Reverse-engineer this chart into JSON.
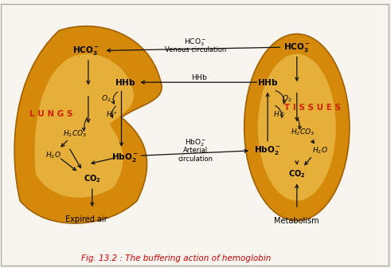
{
  "title": "Fig. 13.2 : The buffering action of hemoglobin",
  "title_color": "#cc0000",
  "bg_color": "#f8f4ee",
  "lung_label": "L U N G S",
  "tissue_label": "T I S S U E S",
  "label_color": "#cc2200",
  "expired_air": "Expired air",
  "metabolism": "Metabolism",
  "venous_text": "Venous circulation",
  "arterial_text": "Arterial\ncirculation",
  "arrow_color": "#111111",
  "ellipse_fill_outer": "#d4890a",
  "ellipse_fill_inner": "#f5d060",
  "ellipse_edge": "#a06000"
}
